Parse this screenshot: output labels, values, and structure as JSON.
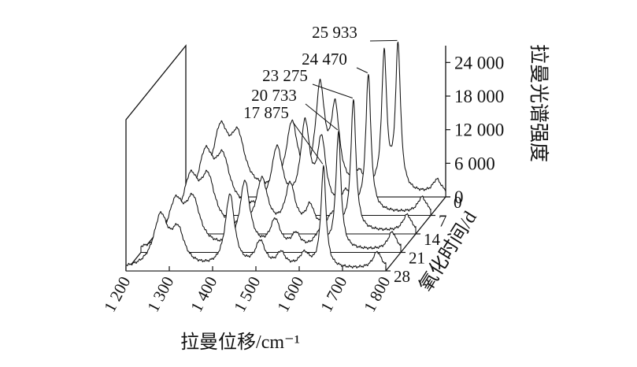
{
  "chart_data": {
    "type": "line",
    "style": "3d-waterfall",
    "title": "",
    "xlabel": "拉曼位移/cm⁻¹",
    "ylabel": "拉曼光谱强度",
    "zlabel": "氧化时间/d",
    "xlim": [
      1200,
      1800
    ],
    "ylim": [
      0,
      27000
    ],
    "x_ticks": [
      1200,
      1300,
      1400,
      1500,
      1600,
      1700,
      1800
    ],
    "x_tick_labels": [
      "1 200",
      "1 300",
      "1 400",
      "1 500",
      "1 600",
      "1 700",
      "1 800"
    ],
    "y_ticks": [
      0,
      6000,
      12000,
      18000,
      24000
    ],
    "y_tick_labels": [
      "0",
      "6 000",
      "12 000",
      "18 000",
      "24 000"
    ],
    "z_ticks": [
      0,
      7,
      14,
      21,
      28
    ],
    "z_tick_labels": [
      "0",
      "7",
      "14",
      "21",
      "28"
    ],
    "grid": false,
    "series": [
      {
        "days": 0,
        "peaks": [
          [
            1280,
            11000,
            22
          ],
          [
            1320,
            9000,
            20
          ],
          [
            1445,
            12000,
            16
          ],
          [
            1510,
            18000,
            13
          ],
          [
            1545,
            14000,
            12
          ],
          [
            1600,
            3000,
            14
          ],
          [
            1658,
            24470,
            7
          ],
          [
            1690,
            25933,
            7
          ],
          [
            1780,
            2500,
            12
          ]
        ],
        "peak_label": "25 933"
      },
      {
        "days": 7,
        "peaks": [
          [
            1280,
            10000,
            22
          ],
          [
            1320,
            8500,
            20
          ],
          [
            1445,
            11000,
            16
          ],
          [
            1510,
            15000,
            13
          ],
          [
            1548,
            12000,
            12
          ],
          [
            1605,
            3000,
            14
          ],
          [
            1656,
            24470,
            7
          ],
          [
            1780,
            2800,
            12
          ]
        ],
        "peak_label": "24 470"
      },
      {
        "days": 14,
        "peaks": [
          [
            1280,
            9000,
            22
          ],
          [
            1320,
            8500,
            20
          ],
          [
            1445,
            9000,
            16
          ],
          [
            1510,
            8000,
            14
          ],
          [
            1556,
            4000,
            12
          ],
          [
            1610,
            2800,
            14
          ],
          [
            1656,
            23275,
            7
          ],
          [
            1780,
            3000,
            12
          ]
        ],
        "peak_label": "23 275"
      },
      {
        "days": 21,
        "peaks": [
          [
            1280,
            8000,
            22
          ],
          [
            1320,
            8000,
            20
          ],
          [
            1440,
            12000,
            14
          ],
          [
            1510,
            5000,
            14
          ],
          [
            1558,
            2500,
            12
          ],
          [
            1612,
            2800,
            14
          ],
          [
            1656,
            20733,
            7
          ],
          [
            1780,
            3200,
            12
          ]
        ],
        "peak_label": "20 733"
      },
      {
        "days": 28,
        "peaks": [
          [
            1280,
            9000,
            20
          ],
          [
            1320,
            6000,
            18
          ],
          [
            1440,
            13000,
            13
          ],
          [
            1510,
            4500,
            14
          ],
          [
            1558,
            2500,
            12
          ],
          [
            1612,
            2500,
            14
          ],
          [
            1656,
            17875,
            7
          ],
          [
            1780,
            3000,
            12
          ]
        ],
        "peak_label": "17 875"
      }
    ]
  }
}
